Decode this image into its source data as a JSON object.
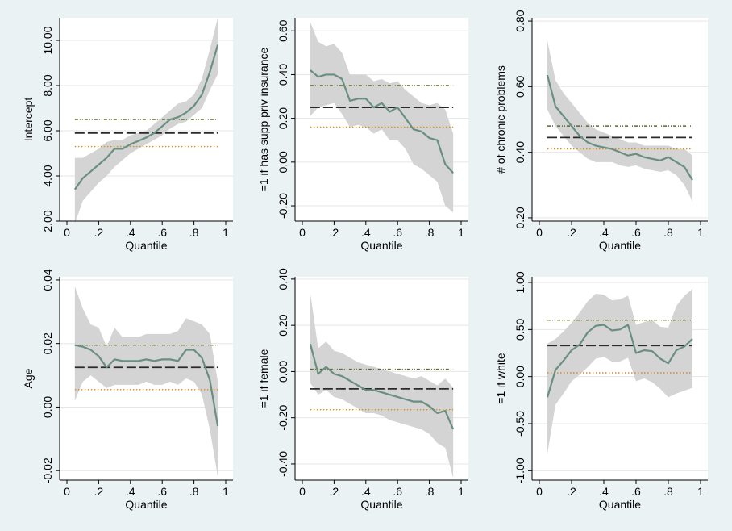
{
  "colors": {
    "background": "#eaf2f3",
    "plot_area": "#ffffff",
    "band": "#d4d4d4",
    "quantile_line": "#6a8f80",
    "ols_line": "#2a2a2a",
    "ci_upper": "#556b2f",
    "ci_lower": "#e08a1e"
  },
  "chart_data": [
    {
      "id": "intercept",
      "type": "line",
      "xlabel": "Quantile",
      "ylabel": "Intercept",
      "xlim": [
        0,
        1
      ],
      "ylim": [
        2.0,
        11.0
      ],
      "xticks": [
        0,
        0.2,
        0.4,
        0.6,
        0.8,
        1
      ],
      "xtick_labels": [
        "0",
        ".2",
        ".4",
        ".6",
        ".8",
        "1"
      ],
      "yticks": [
        2,
        4,
        6,
        8,
        10
      ],
      "ytick_labels": [
        "2.00",
        "4.00",
        "6.00",
        "8.00",
        "10.00"
      ],
      "x": [
        0.05,
        0.1,
        0.15,
        0.2,
        0.25,
        0.3,
        0.35,
        0.4,
        0.45,
        0.5,
        0.55,
        0.6,
        0.65,
        0.7,
        0.75,
        0.8,
        0.85,
        0.9,
        0.95
      ],
      "estimate": [
        3.4,
        3.9,
        4.2,
        4.5,
        4.8,
        5.2,
        5.2,
        5.4,
        5.55,
        5.7,
        5.9,
        6.2,
        6.5,
        6.6,
        6.8,
        7.1,
        7.6,
        8.6,
        9.8
      ],
      "ci_upper": [
        4.8,
        4.8,
        5.0,
        5.2,
        5.5,
        5.6,
        5.6,
        5.8,
        5.9,
        6.0,
        6.3,
        6.6,
        6.9,
        7.2,
        7.3,
        7.6,
        8.3,
        9.6,
        11.0
      ],
      "ci_lower": [
        1.9,
        2.9,
        3.3,
        3.7,
        4.0,
        4.4,
        4.7,
        5.0,
        5.2,
        5.4,
        5.6,
        5.8,
        6.1,
        6.3,
        6.4,
        6.7,
        7.0,
        7.8,
        8.5
      ],
      "ols": 5.9,
      "ols_ci_upper": 6.5,
      "ols_ci_lower": 5.3
    },
    {
      "id": "supp_priv_insurance",
      "type": "line",
      "xlabel": "Quantile",
      "ylabel": "=1 if has supp priv insurance",
      "xlim": [
        0,
        1
      ],
      "ylim": [
        -0.27,
        0.66
      ],
      "xticks": [
        0,
        0.2,
        0.4,
        0.6,
        0.8,
        1
      ],
      "xtick_labels": [
        "0",
        ".2",
        ".4",
        ".6",
        ".8",
        "1"
      ],
      "yticks": [
        -0.2,
        0.0,
        0.2,
        0.4,
        0.6
      ],
      "ytick_labels": [
        "-0.20",
        "0.00",
        "0.20",
        "0.40",
        "0.60"
      ],
      "x": [
        0.05,
        0.1,
        0.15,
        0.2,
        0.25,
        0.3,
        0.35,
        0.4,
        0.45,
        0.5,
        0.55,
        0.6,
        0.65,
        0.7,
        0.75,
        0.8,
        0.85,
        0.9,
        0.95
      ],
      "estimate": [
        0.42,
        0.39,
        0.4,
        0.4,
        0.38,
        0.28,
        0.29,
        0.29,
        0.25,
        0.27,
        0.23,
        0.25,
        0.2,
        0.15,
        0.14,
        0.11,
        0.1,
        -0.01,
        -0.05
      ],
      "ci_upper": [
        0.64,
        0.55,
        0.53,
        0.54,
        0.5,
        0.4,
        0.4,
        0.4,
        0.37,
        0.38,
        0.36,
        0.37,
        0.33,
        0.3,
        0.27,
        0.26,
        0.27,
        0.24,
        0.13
      ],
      "ci_lower": [
        0.21,
        0.25,
        0.26,
        0.27,
        0.22,
        0.16,
        0.17,
        0.16,
        0.13,
        0.15,
        0.1,
        0.1,
        0.06,
        -0.01,
        -0.03,
        -0.06,
        -0.09,
        -0.2,
        -0.23
      ],
      "ols": 0.25,
      "ols_ci_upper": 0.35,
      "ols_ci_lower": 0.16
    },
    {
      "id": "chronic_problems",
      "type": "line",
      "xlabel": "Quantile",
      "ylabel": "# of chronic problems",
      "xlim": [
        0,
        1
      ],
      "ylim": [
        0.19,
        0.81
      ],
      "xticks": [
        0,
        0.2,
        0.4,
        0.6,
        0.8,
        1
      ],
      "xtick_labels": [
        "0",
        ".2",
        ".4",
        ".6",
        ".8",
        "1"
      ],
      "yticks": [
        0.2,
        0.4,
        0.6,
        0.8
      ],
      "ytick_labels": [
        "0.20",
        "0.40",
        "0.60",
        "0.80"
      ],
      "x": [
        0.05,
        0.1,
        0.15,
        0.2,
        0.25,
        0.3,
        0.35,
        0.4,
        0.45,
        0.5,
        0.55,
        0.6,
        0.65,
        0.7,
        0.75,
        0.8,
        0.85,
        0.9,
        0.95
      ],
      "estimate": [
        0.635,
        0.54,
        0.51,
        0.48,
        0.45,
        0.43,
        0.42,
        0.415,
        0.41,
        0.4,
        0.39,
        0.395,
        0.385,
        0.38,
        0.375,
        0.385,
        0.37,
        0.355,
        0.315
      ],
      "ci_upper": [
        0.74,
        0.62,
        0.58,
        0.55,
        0.52,
        0.49,
        0.47,
        0.46,
        0.45,
        0.44,
        0.43,
        0.43,
        0.42,
        0.42,
        0.42,
        0.42,
        0.41,
        0.41,
        0.39
      ],
      "ci_lower": [
        0.53,
        0.48,
        0.45,
        0.42,
        0.4,
        0.38,
        0.37,
        0.37,
        0.37,
        0.36,
        0.355,
        0.36,
        0.35,
        0.345,
        0.34,
        0.345,
        0.33,
        0.3,
        0.25
      ],
      "ols": 0.445,
      "ols_ci_upper": 0.48,
      "ols_ci_lower": 0.41
    },
    {
      "id": "age",
      "type": "line",
      "xlabel": "Quantile",
      "ylabel": "Age",
      "xlim": [
        0,
        1
      ],
      "ylim": [
        -0.023,
        0.041
      ],
      "xticks": [
        0,
        0.2,
        0.4,
        0.6,
        0.8,
        1
      ],
      "xtick_labels": [
        "0",
        ".2",
        ".4",
        ".6",
        ".8",
        "1"
      ],
      "yticks": [
        -0.02,
        0.0,
        0.02,
        0.04
      ],
      "ytick_labels": [
        "-0.02",
        "0.00",
        "0.02",
        "0.04"
      ],
      "x": [
        0.05,
        0.1,
        0.15,
        0.2,
        0.25,
        0.3,
        0.35,
        0.4,
        0.45,
        0.5,
        0.55,
        0.6,
        0.65,
        0.7,
        0.75,
        0.8,
        0.85,
        0.9,
        0.95
      ],
      "estimate": [
        0.0195,
        0.019,
        0.018,
        0.016,
        0.0125,
        0.015,
        0.0145,
        0.0145,
        0.0145,
        0.015,
        0.0145,
        0.015,
        0.015,
        0.0145,
        0.018,
        0.018,
        0.0155,
        0.0085,
        -0.006
      ],
      "ci_upper": [
        0.038,
        0.031,
        0.026,
        0.025,
        0.019,
        0.025,
        0.022,
        0.022,
        0.022,
        0.023,
        0.023,
        0.023,
        0.023,
        0.024,
        0.028,
        0.027,
        0.026,
        0.023,
        0.008
      ],
      "ci_lower": [
        0.002,
        0.008,
        0.01,
        0.008,
        0.006,
        0.007,
        0.007,
        0.007,
        0.007,
        0.008,
        0.007,
        0.007,
        0.008,
        0.007,
        0.009,
        0.008,
        0.004,
        -0.007,
        -0.022
      ],
      "ols": 0.0125,
      "ols_ci_upper": 0.0195,
      "ols_ci_lower": 0.0055
    },
    {
      "id": "female",
      "type": "line",
      "xlabel": "Quantile",
      "ylabel": "=1  if female",
      "xlim": [
        0,
        1
      ],
      "ylim": [
        -0.47,
        0.41
      ],
      "xticks": [
        0,
        0.2,
        0.4,
        0.6,
        0.8,
        1
      ],
      "xtick_labels": [
        "0",
        ".2",
        ".4",
        ".6",
        ".8",
        "1"
      ],
      "yticks": [
        -0.4,
        -0.2,
        0.0,
        0.2,
        0.4
      ],
      "ytick_labels": [
        "-0.40",
        "-0.20",
        "0.00",
        "0.20",
        "0.40"
      ],
      "x": [
        0.05,
        0.1,
        0.15,
        0.2,
        0.25,
        0.3,
        0.35,
        0.4,
        0.45,
        0.5,
        0.55,
        0.6,
        0.65,
        0.7,
        0.75,
        0.8,
        0.85,
        0.9,
        0.95
      ],
      "estimate": [
        0.12,
        -0.01,
        0.02,
        -0.01,
        -0.02,
        -0.04,
        -0.06,
        -0.08,
        -0.08,
        -0.09,
        -0.1,
        -0.11,
        -0.12,
        -0.13,
        -0.13,
        -0.15,
        -0.18,
        -0.17,
        -0.25
      ],
      "ci_upper": [
        0.34,
        0.1,
        0.13,
        0.09,
        0.08,
        0.06,
        0.04,
        0.03,
        0.02,
        0.01,
        0.0,
        -0.01,
        -0.02,
        -0.03,
        -0.02,
        -0.04,
        -0.06,
        -0.03,
        -0.07
      ],
      "ci_lower": [
        -0.05,
        -0.1,
        -0.08,
        -0.11,
        -0.12,
        -0.14,
        -0.16,
        -0.18,
        -0.18,
        -0.19,
        -0.21,
        -0.22,
        -0.23,
        -0.24,
        -0.25,
        -0.27,
        -0.31,
        -0.33,
        -0.46
      ],
      "ols": -0.075,
      "ols_ci_upper": 0.01,
      "ols_ci_lower": -0.165
    },
    {
      "id": "white",
      "type": "line",
      "xlabel": "Quantile",
      "ylabel": "=1  if white",
      "xlim": [
        0,
        1
      ],
      "ylim": [
        -1.1,
        1.06
      ],
      "xticks": [
        0,
        0.2,
        0.4,
        0.6,
        0.8,
        1
      ],
      "xtick_labels": [
        "0",
        ".2",
        ".4",
        ".6",
        ".8",
        "1"
      ],
      "yticks": [
        -1.0,
        -0.5,
        0.0,
        0.5,
        1.0
      ],
      "ytick_labels": [
        "-1.00",
        "-0.50",
        "0.00",
        "0.50",
        "1.00"
      ],
      "x": [
        0.05,
        0.1,
        0.15,
        0.2,
        0.25,
        0.3,
        0.35,
        0.4,
        0.45,
        0.5,
        0.55,
        0.6,
        0.65,
        0.7,
        0.75,
        0.8,
        0.85,
        0.9,
        0.95
      ],
      "estimate": [
        -0.22,
        0.07,
        0.17,
        0.28,
        0.34,
        0.47,
        0.54,
        0.55,
        0.49,
        0.5,
        0.55,
        0.25,
        0.28,
        0.27,
        0.19,
        0.14,
        0.28,
        0.32,
        0.4
      ],
      "ci_upper": [
        0.35,
        0.4,
        0.48,
        0.57,
        0.68,
        0.8,
        0.88,
        0.87,
        0.81,
        0.82,
        0.86,
        0.55,
        0.58,
        0.6,
        0.53,
        0.52,
        0.75,
        0.86,
        0.93
      ],
      "ci_lower": [
        -0.82,
        -0.3,
        -0.18,
        -0.05,
        0.02,
        0.1,
        0.19,
        0.21,
        0.16,
        0.16,
        0.2,
        -0.05,
        -0.02,
        -0.06,
        -0.13,
        -0.22,
        -0.18,
        -0.15,
        -0.12
      ],
      "ols": 0.33,
      "ols_ci_upper": 0.6,
      "ols_ci_lower": 0.04
    }
  ]
}
